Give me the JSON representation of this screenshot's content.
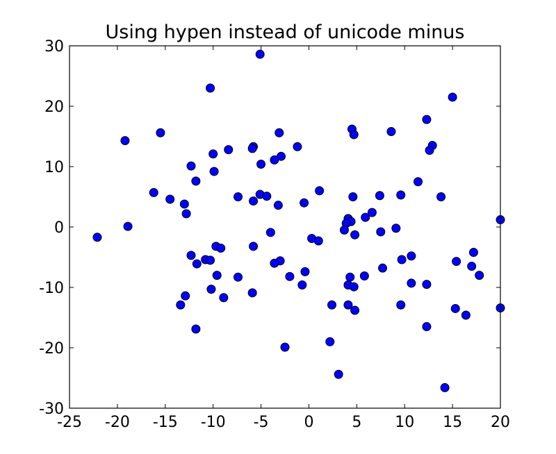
{
  "chart_data": {
    "type": "scatter",
    "title": "Using hypen instead of unicode minus",
    "xlabel": "",
    "ylabel": "",
    "xlim": [
      -25,
      20
    ],
    "ylim": [
      -30,
      30
    ],
    "x_ticks": [
      -25,
      -20,
      -15,
      -10,
      -5,
      0,
      5,
      10,
      15,
      20
    ],
    "y_ticks": [
      -30,
      -20,
      -10,
      0,
      10,
      20,
      30
    ],
    "x_tick_labels": [
      "-25",
      "-20",
      "-15",
      "-10",
      "-5",
      "0",
      "5",
      "10",
      "15",
      "20"
    ],
    "y_tick_labels": [
      "-30",
      "-20",
      "-10",
      "0",
      "10",
      "20",
      "30"
    ],
    "grid": false,
    "marker_color": "#0000ff",
    "points": [
      {
        "x": -5.1,
        "y": 28.6
      },
      {
        "x": -10.3,
        "y": 23.0
      },
      {
        "x": 15.0,
        "y": 21.5
      },
      {
        "x": 12.3,
        "y": 17.8
      },
      {
        "x": 4.5,
        "y": 16.2
      },
      {
        "x": 4.7,
        "y": 15.3
      },
      {
        "x": 8.6,
        "y": 15.8
      },
      {
        "x": -15.5,
        "y": 15.6
      },
      {
        "x": -3.1,
        "y": 15.6
      },
      {
        "x": -19.2,
        "y": 14.3
      },
      {
        "x": 12.9,
        "y": 13.5
      },
      {
        "x": 12.6,
        "y": 12.7
      },
      {
        "x": -5.8,
        "y": 13.3
      },
      {
        "x": -5.9,
        "y": 13.0
      },
      {
        "x": -1.2,
        "y": 13.3
      },
      {
        "x": -8.4,
        "y": 12.8
      },
      {
        "x": -10.0,
        "y": 12.1
      },
      {
        "x": -2.9,
        "y": 11.7
      },
      {
        "x": -3.6,
        "y": 11.1
      },
      {
        "x": -12.3,
        "y": 10.1
      },
      {
        "x": -5.0,
        "y": 10.4
      },
      {
        "x": -9.9,
        "y": 9.2
      },
      {
        "x": -11.8,
        "y": 7.6
      },
      {
        "x": 11.4,
        "y": 7.5
      },
      {
        "x": -16.2,
        "y": 5.7
      },
      {
        "x": 1.1,
        "y": 6.0
      },
      {
        "x": -5.1,
        "y": 5.4
      },
      {
        "x": -4.4,
        "y": 5.1
      },
      {
        "x": -7.4,
        "y": 5.0
      },
      {
        "x": 4.6,
        "y": 5.0
      },
      {
        "x": 7.4,
        "y": 5.2
      },
      {
        "x": 9.6,
        "y": 5.3
      },
      {
        "x": 13.8,
        "y": 5.0
      },
      {
        "x": -14.5,
        "y": 4.6
      },
      {
        "x": -5.8,
        "y": 4.3
      },
      {
        "x": -0.5,
        "y": 4.0
      },
      {
        "x": -13.0,
        "y": 3.8
      },
      {
        "x": -3.2,
        "y": 3.6
      },
      {
        "x": 6.6,
        "y": 2.4
      },
      {
        "x": -12.8,
        "y": 2.2
      },
      {
        "x": 5.9,
        "y": 1.6
      },
      {
        "x": 4.1,
        "y": 1.4
      },
      {
        "x": 4.4,
        "y": 0.9
      },
      {
        "x": 3.9,
        "y": 0.6
      },
      {
        "x": 20.0,
        "y": 1.2
      },
      {
        "x": -18.9,
        "y": 0.1
      },
      {
        "x": 9.1,
        "y": -0.2
      },
      {
        "x": 3.7,
        "y": -0.5
      },
      {
        "x": 7.5,
        "y": -0.8
      },
      {
        "x": -4.0,
        "y": -0.9
      },
      {
        "x": 4.8,
        "y": -1.3
      },
      {
        "x": -22.1,
        "y": -1.7
      },
      {
        "x": 0.3,
        "y": -1.9
      },
      {
        "x": 1.0,
        "y": -2.3
      },
      {
        "x": -5.8,
        "y": -3.2
      },
      {
        "x": -9.7,
        "y": -3.2
      },
      {
        "x": -9.2,
        "y": -3.5
      },
      {
        "x": 17.2,
        "y": -4.2
      },
      {
        "x": -12.3,
        "y": -4.7
      },
      {
        "x": 10.7,
        "y": -4.8
      },
      {
        "x": -10.8,
        "y": -5.4
      },
      {
        "x": -10.3,
        "y": -5.5
      },
      {
        "x": 9.7,
        "y": -5.4
      },
      {
        "x": 15.4,
        "y": -5.7
      },
      {
        "x": -3.0,
        "y": -5.6
      },
      {
        "x": -3.6,
        "y": -6.0
      },
      {
        "x": -11.7,
        "y": -6.1
      },
      {
        "x": 17.0,
        "y": -6.5
      },
      {
        "x": 7.7,
        "y": -6.8
      },
      {
        "x": -0.4,
        "y": -7.4
      },
      {
        "x": -9.6,
        "y": -8.0
      },
      {
        "x": -7.4,
        "y": -8.3
      },
      {
        "x": -2.0,
        "y": -8.2
      },
      {
        "x": 4.3,
        "y": -8.3
      },
      {
        "x": 5.8,
        "y": -8.1
      },
      {
        "x": 17.8,
        "y": -8.0
      },
      {
        "x": 10.7,
        "y": -9.3
      },
      {
        "x": 12.3,
        "y": -9.5
      },
      {
        "x": 4.1,
        "y": -9.6
      },
      {
        "x": -0.7,
        "y": -9.6
      },
      {
        "x": 4.7,
        "y": -9.9
      },
      {
        "x": -10.2,
        "y": -10.3
      },
      {
        "x": -5.9,
        "y": -10.9
      },
      {
        "x": -8.9,
        "y": -11.7
      },
      {
        "x": -12.9,
        "y": -11.4
      },
      {
        "x": 2.4,
        "y": -12.9
      },
      {
        "x": 4.1,
        "y": -12.9
      },
      {
        "x": 9.6,
        "y": -12.9
      },
      {
        "x": -13.4,
        "y": -12.9
      },
      {
        "x": 4.8,
        "y": -13.8
      },
      {
        "x": 15.3,
        "y": -13.5
      },
      {
        "x": 20.0,
        "y": -13.4
      },
      {
        "x": 16.4,
        "y": -14.6
      },
      {
        "x": 12.3,
        "y": -16.5
      },
      {
        "x": -11.8,
        "y": -16.9
      },
      {
        "x": 2.2,
        "y": -19.0
      },
      {
        "x": -2.5,
        "y": -19.9
      },
      {
        "x": 3.1,
        "y": -24.4
      },
      {
        "x": 14.2,
        "y": -26.6
      }
    ]
  }
}
